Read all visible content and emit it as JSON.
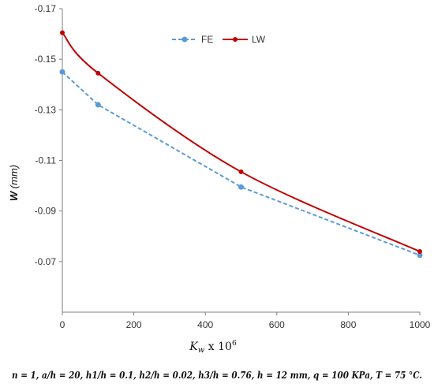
{
  "chart_data": {
    "type": "line",
    "xlabel": "K_w x 10^6",
    "xlabel_parts": {
      "main": "K",
      "sub": "w",
      "mid": " x 10",
      "sup": "6"
    },
    "ylabel": "W (mm)",
    "ylabel_parts": {
      "main": "W",
      "unit": " (mm)"
    },
    "xlim": [
      0,
      1000
    ],
    "ylim": [
      -0.17,
      -0.05
    ],
    "y_reversed": true,
    "x_ticks": [
      0,
      200,
      400,
      600,
      800,
      1000
    ],
    "y_ticks": [
      -0.17,
      -0.15,
      -0.13,
      -0.11,
      -0.09,
      -0.07
    ],
    "y_tick_labels": [
      "-0.17",
      "-0.15",
      "-0.13",
      "-0.11",
      "-0.09",
      "-0.07"
    ],
    "legend_position": "top-center",
    "grid": false,
    "series": [
      {
        "name": "FE",
        "color": "#5B9BD5",
        "dashed": true,
        "x": [
          0,
          100,
          500,
          1000
        ],
        "y": [
          -0.145,
          -0.132,
          -0.0995,
          -0.0725
        ]
      },
      {
        "name": "LW",
        "color": "#C00000",
        "dashed": false,
        "x": [
          0,
          100,
          500,
          1000
        ],
        "y": [
          -0.1605,
          -0.1445,
          -0.1055,
          -0.074
        ]
      }
    ],
    "footnote": "n = 1, a/h = 20, h1/h = 0.1, h2/h = 0.02, h3/h = 0.76, h = 12 mm, q = 100 KPa, T = 75 °C."
  }
}
